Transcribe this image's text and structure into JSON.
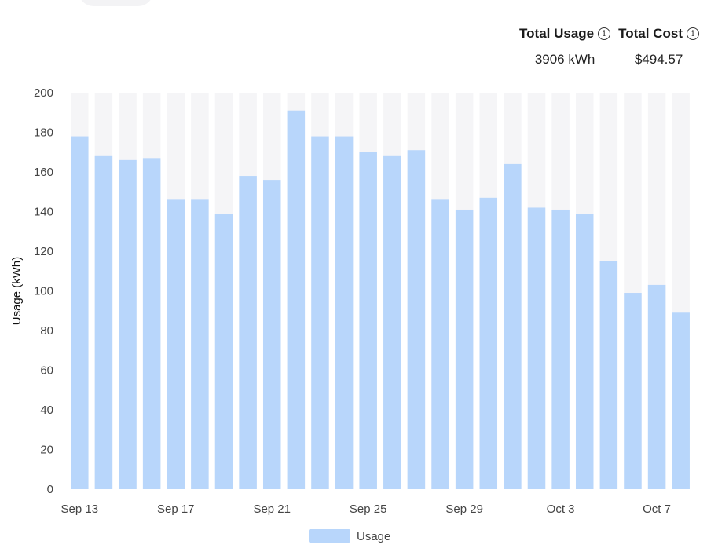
{
  "summary": {
    "total_usage_label": "Total Usage",
    "total_usage_value": "3906 kWh",
    "total_cost_label": "Total Cost",
    "total_cost_value": "$494.57"
  },
  "colors": {
    "bar": "#b8d6fb",
    "bar_bg": "#f5f5f7",
    "axis_text": "#444444"
  },
  "chart_data": {
    "type": "bar",
    "ylabel": "Usage (kWh)",
    "ylim": [
      0,
      200
    ],
    "yticks": [
      0,
      20,
      40,
      60,
      80,
      100,
      120,
      140,
      160,
      180,
      200
    ],
    "categories": [
      "Sep 13",
      "Sep 14",
      "Sep 15",
      "Sep 16",
      "Sep 17",
      "Sep 18",
      "Sep 19",
      "Sep 20",
      "Sep 21",
      "Sep 22",
      "Sep 23",
      "Sep 24",
      "Sep 25",
      "Sep 26",
      "Sep 27",
      "Sep 28",
      "Sep 29",
      "Sep 30",
      "Oct 1",
      "Oct 2",
      "Oct 3",
      "Oct 4",
      "Oct 5",
      "Oct 6",
      "Oct 7",
      "Oct 8"
    ],
    "xtick_labels": [
      "Sep 13",
      "Sep 17",
      "Sep 21",
      "Sep 25",
      "Sep 29",
      "Oct 3",
      "Oct 7"
    ],
    "series": [
      {
        "name": "Usage",
        "values": [
          178,
          168,
          166,
          167,
          146,
          146,
          139,
          158,
          156,
          191,
          178,
          178,
          170,
          168,
          171,
          146,
          141,
          147,
          164,
          142,
          141,
          139,
          115,
          99,
          103,
          89
        ]
      }
    ],
    "legend": "bottom"
  }
}
